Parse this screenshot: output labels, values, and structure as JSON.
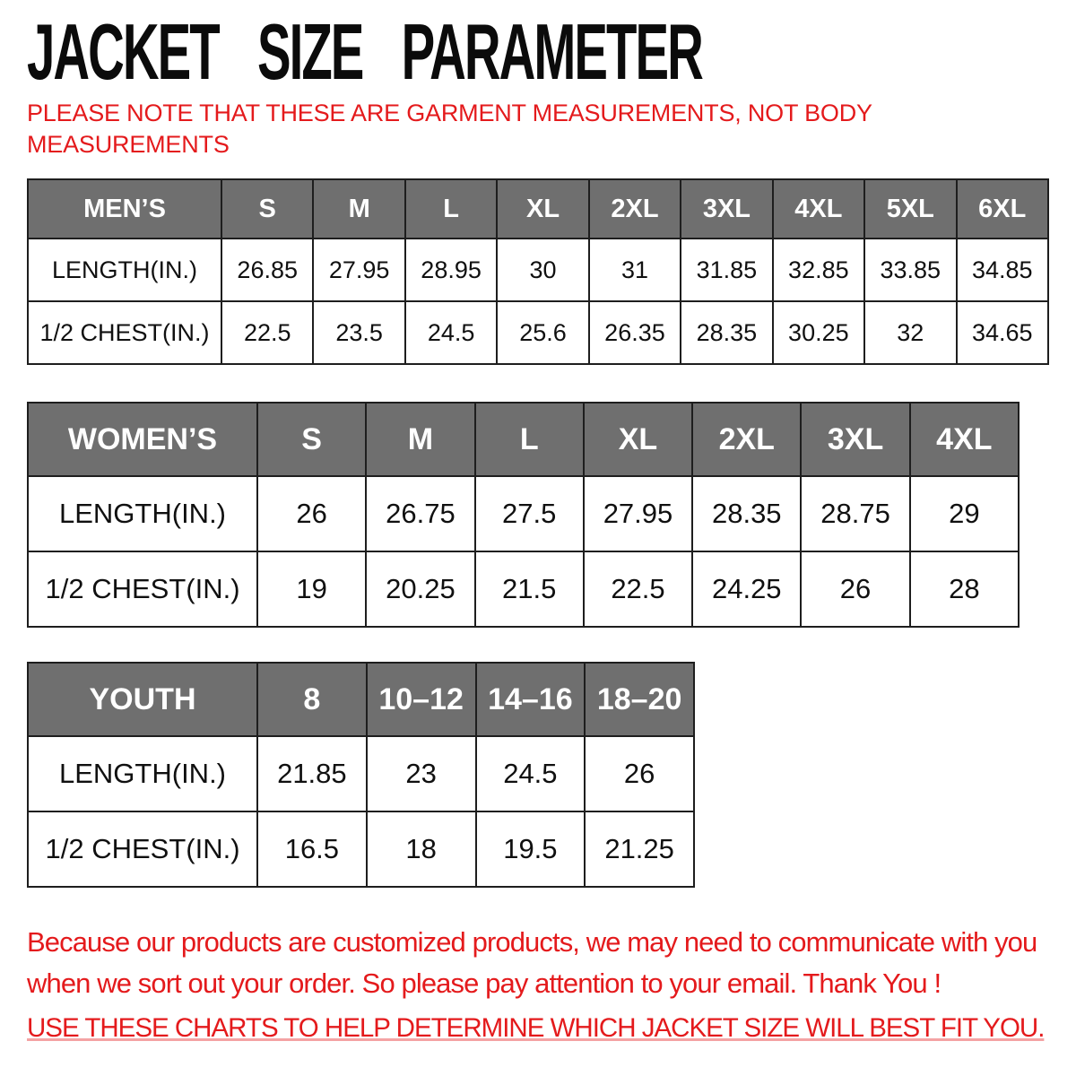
{
  "colors": {
    "accent_red": "#e41a1c",
    "header_gray": "#6f6f6f",
    "border_black": "#1e1e1e",
    "text_black": "#101010"
  },
  "title": "JACKET SIZE PARAMETER",
  "note": {
    "line1": "PLEASE NOTE THAT THESE ARE GARMENT MEASUREMENTS, NOT BODY",
    "line2": "MEASUREMENTS"
  },
  "tables": [
    {
      "name": "MEN’S",
      "sizes": [
        "S",
        "M",
        "L",
        "XL",
        "2XL",
        "3XL",
        "4XL",
        "5XL",
        "6XL"
      ],
      "rows": [
        {
          "label": "LENGTH(IN.)",
          "values": [
            "26.85",
            "27.95",
            "28.95",
            "30",
            "31",
            "31.85",
            "32.85",
            "33.85",
            "34.85"
          ]
        },
        {
          "label": "1/2 CHEST(IN.)",
          "values": [
            "22.5",
            "23.5",
            "24.5",
            "25.6",
            "26.35",
            "28.35",
            "30.25",
            "32",
            "34.65"
          ]
        }
      ]
    },
    {
      "name": "WOMEN’S",
      "sizes": [
        "S",
        "M",
        "L",
        "XL",
        "2XL",
        "3XL",
        "4XL"
      ],
      "rows": [
        {
          "label": "LENGTH(IN.)",
          "values": [
            "26",
            "26.75",
            "27.5",
            "27.95",
            "28.35",
            "28.75",
            "29"
          ]
        },
        {
          "label": "1/2 CHEST(IN.)",
          "values": [
            "19",
            "20.25",
            "21.5",
            "22.5",
            "24.25",
            "26",
            "28"
          ]
        }
      ]
    },
    {
      "name": "YOUTH",
      "sizes": [
        "8",
        "10–12",
        "14–16",
        "18–20"
      ],
      "rows": [
        {
          "label": "LENGTH(IN.)",
          "values": [
            "21.85",
            "23",
            "24.5",
            "26"
          ]
        },
        {
          "label": "1/2 CHEST(IN.)",
          "values": [
            "16.5",
            "18",
            "19.5",
            "21.25"
          ]
        }
      ]
    }
  ],
  "footer": {
    "line1": "Because our products are customized products, we may need to communicate with you",
    "line2": "when we sort out your order. So please pay attention to your email. Thank You !",
    "line3": "USE THESE CHARTS TO HELP DETERMINE WHICH JACKET SIZE WILL BEST FIT YOU."
  }
}
